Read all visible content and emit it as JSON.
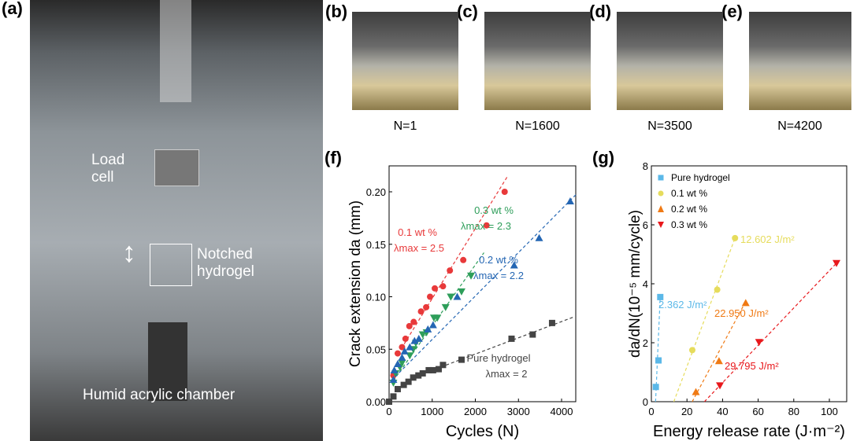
{
  "panels": {
    "a": "(a)",
    "b": "(b)",
    "c": "(c)",
    "d": "(d)",
    "e": "(e)",
    "f": "(f)",
    "g": "(g)"
  },
  "photo_a": {
    "load_cell": "Load\ncell",
    "notched": "Notched\nhydrogel",
    "chamber": "Humid acrylic chamber"
  },
  "captions": [
    "N=1",
    "N=1600",
    "N=3500",
    "N=4200"
  ],
  "chart_data": [
    {
      "type": "scatter",
      "xlabel": "Cycles (N)",
      "ylabel": "Crack extension da (mm)",
      "xlim": [
        0,
        4300
      ],
      "ylim": [
        0,
        0.225
      ],
      "xticks": [
        "0",
        "1000",
        "2000",
        "3000",
        "4000"
      ],
      "yticks": [
        "0.00",
        "0.05",
        "0.10",
        "0.15",
        "0.20"
      ],
      "series": [
        {
          "name": "0.1 wt %",
          "annotation": "λmax = 2.5",
          "color": "#e8393a",
          "marker": "circle",
          "x": [
            100,
            200,
            300,
            380,
            470,
            570,
            740,
            860,
            950,
            1060,
            1250,
            1410,
            1720,
            2260,
            2680
          ],
          "y": [
            0.025,
            0.046,
            0.052,
            0.06,
            0.072,
            0.076,
            0.086,
            0.09,
            0.1,
            0.108,
            0.11,
            0.125,
            0.135,
            0.168,
            0.2
          ],
          "fit": [
            [
              350,
              0.055
            ],
            [
              2750,
              0.215
            ]
          ]
        },
        {
          "name": "0.3 wt %",
          "annotation": "λmax = 2.3",
          "color": "#2e9e5a",
          "marker": "triangle-down",
          "x": [
            100,
            150,
            250,
            300,
            480,
            560,
            620,
            780,
            870,
            1040,
            1120,
            1310,
            1430,
            1680,
            1900
          ],
          "y": [
            0.018,
            0.027,
            0.033,
            0.037,
            0.044,
            0.05,
            0.056,
            0.064,
            0.066,
            0.08,
            0.08,
            0.09,
            0.1,
            0.105,
            0.12
          ],
          "fit": [
            [
              100,
              0.02
            ],
            [
              2200,
              0.142
            ]
          ]
        },
        {
          "name": "0.2 wt %",
          "annotation": "λmax = 2.2",
          "color": "#2466b3",
          "marker": "triangle-up",
          "x": [
            100,
            120,
            200,
            300,
            360,
            480,
            590,
            690,
            900,
            1020,
            1580,
            2900,
            3480,
            4200
          ],
          "y": [
            0.021,
            0.03,
            0.036,
            0.042,
            0.048,
            0.052,
            0.058,
            0.06,
            0.069,
            0.073,
            0.1,
            0.13,
            0.156,
            0.191
          ],
          "fit": [
            [
              50,
              0.02
            ],
            [
              4350,
              0.198
            ]
          ]
        },
        {
          "name": "Pure hydrogel",
          "annotation": "λmax = 2",
          "color": "#444444",
          "marker": "square",
          "x": [
            0,
            100,
            200,
            340,
            450,
            560,
            680,
            780,
            920,
            1020,
            1150,
            1250,
            1680,
            2840,
            3330,
            3780
          ],
          "y": [
            0,
            0.005,
            0.012,
            0.016,
            0.019,
            0.023,
            0.025,
            0.027,
            0.03,
            0.03,
            0.031,
            0.035,
            0.04,
            0.06,
            0.064,
            0.075
          ],
          "fit": [
            [
              1200,
              0.033
            ],
            [
              4300,
              0.081
            ]
          ]
        }
      ]
    },
    {
      "type": "scatter",
      "xlabel": "Energy release rate (J·m⁻²)",
      "ylabel": "da/dN(10⁻⁵ mm/cycle)",
      "xlim": [
        0,
        110
      ],
      "ylim": [
        0,
        8
      ],
      "xticks": [
        "0",
        "20",
        "40",
        "60",
        "80",
        "100"
      ],
      "yticks": [
        "0",
        "2",
        "4",
        "6",
        "8"
      ],
      "legend": "top-left",
      "series": [
        {
          "name": "Pure hydrogel",
          "annotation": "2.362 J/m²",
          "color": "#5bb8e8",
          "marker": "square",
          "x": [
            2.5,
            4,
            5
          ],
          "y": [
            0.5,
            1.4,
            3.55
          ],
          "fit": [
            [
              2.362,
              0
            ],
            [
              5,
              3.6
            ]
          ]
        },
        {
          "name": "0.1 wt %",
          "annotation": "12.602 J/m²",
          "color": "#e6dc5c",
          "marker": "circle",
          "x": [
            23,
            37,
            47
          ],
          "y": [
            1.75,
            3.8,
            5.55
          ],
          "fit": [
            [
              12.602,
              0
            ],
            [
              47,
              5.55
            ]
          ]
        },
        {
          "name": "0.2 wt %",
          "annotation": "22.950 J/m²",
          "color": "#f07a14",
          "marker": "triangle-up",
          "x": [
            25,
            38,
            53
          ],
          "y": [
            0.33,
            1.38,
            3.35
          ],
          "fit": [
            [
              22.95,
              0
            ],
            [
              53,
              3.4
            ]
          ]
        },
        {
          "name": "0.3 wt %",
          "annotation": "29.795 J/m²",
          "color": "#e8181c",
          "marker": "triangle-down",
          "x": [
            38.5,
            60.5,
            104
          ],
          "y": [
            0.55,
            2.02,
            4.7
          ],
          "fit": [
            [
              29.795,
              0
            ],
            [
              104,
              4.7
            ]
          ]
        }
      ]
    }
  ]
}
